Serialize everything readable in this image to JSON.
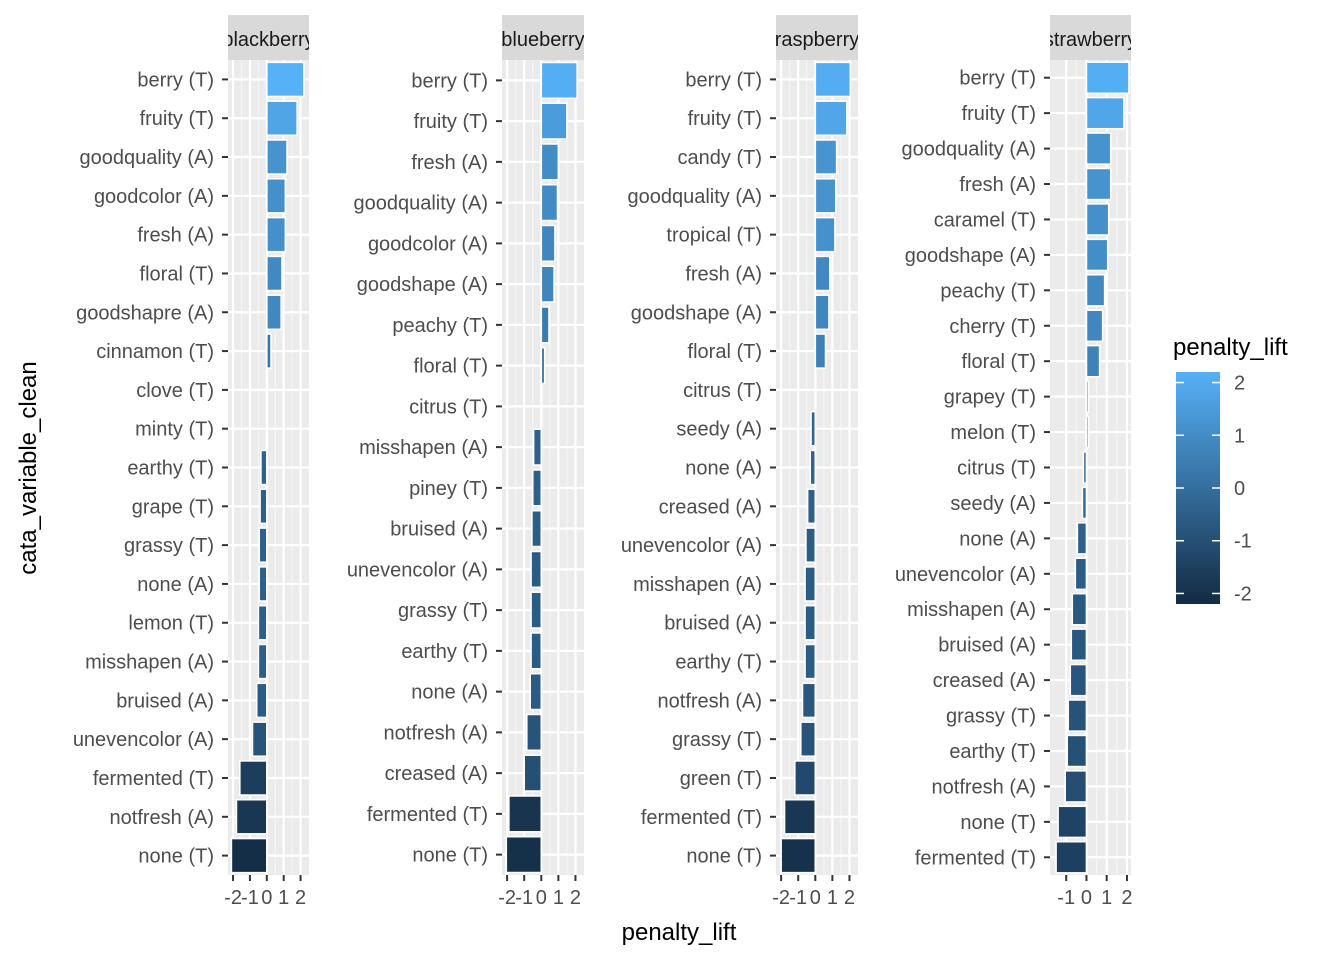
{
  "chart_data": {
    "type": "bar",
    "orientation": "horizontal",
    "xlabel": "penalty_lift",
    "ylabel": "cata_variable_clean",
    "legend": {
      "title": "penalty_lift",
      "position": "right",
      "ticks": [
        2,
        1,
        0,
        -1,
        -2
      ],
      "range": [
        -2.2,
        2.2
      ],
      "color_low": "#132B43",
      "color_high": "#56B1F7"
    },
    "grid": true,
    "panels": [
      {
        "strip": "blackberry",
        "xlim": [
          -2.3,
          2.5
        ],
        "xticks": [
          -2,
          -1,
          0,
          1,
          2
        ],
        "xtick_labels": [
          "-2",
          "-1",
          "0",
          "1",
          "2"
        ],
        "categories": [
          "berry (T)",
          "fruity (T)",
          "goodquality (A)",
          "goodcolor (A)",
          "fresh (A)",
          "floral (T)",
          "goodshapre (A)",
          "cinnamon (T)",
          "clove (T)",
          "minty (T)",
          "earthy (T)",
          "grape (T)",
          "grassy (T)",
          "none (A)",
          "lemon (T)",
          "misshapen (A)",
          "bruised (A)",
          "unevencolor (A)",
          "fermented (T)",
          "notfresh (A)",
          "none (T)"
        ],
        "values": [
          2.2,
          1.8,
          1.2,
          1.1,
          1.1,
          0.9,
          0.85,
          0.25,
          0.0,
          0.0,
          -0.35,
          -0.4,
          -0.45,
          -0.45,
          -0.5,
          -0.5,
          -0.6,
          -0.85,
          -1.6,
          -1.8,
          -2.1
        ]
      },
      {
        "strip": "blueberry",
        "xlim": [
          -2.3,
          2.5
        ],
        "xticks": [
          -2,
          -1,
          0,
          1,
          2
        ],
        "xtick_labels": [
          "-2",
          "-1",
          "0",
          "1",
          "2"
        ],
        "categories": [
          "berry (T)",
          "fruity (T)",
          "fresh (A)",
          "goodquality (A)",
          "goodcolor (A)",
          "goodshape (A)",
          "peachy (T)",
          "floral (T)",
          "citrus (T)",
          "misshapen (A)",
          "piney (T)",
          "bruised (A)",
          "unevencolor (A)",
          "grassy (T)",
          "earthy (T)",
          "none (A)",
          "notfresh (A)",
          "creased (A)",
          "fermented (T)",
          "none (T)"
        ],
        "values": [
          2.1,
          1.5,
          1.0,
          0.95,
          0.8,
          0.75,
          0.45,
          0.2,
          0.0,
          -0.45,
          -0.5,
          -0.55,
          -0.6,
          -0.6,
          -0.6,
          -0.65,
          -0.85,
          -1.0,
          -1.9,
          -2.05
        ]
      },
      {
        "strip": "raspberry",
        "xlim": [
          -2.3,
          2.5
        ],
        "xticks": [
          -2,
          -1,
          0,
          1,
          2
        ],
        "xtick_labels": [
          "-2",
          "-1",
          "0",
          "1",
          "2"
        ],
        "categories": [
          "berry (T)",
          "fruity (T)",
          "candy (T)",
          "goodquality (A)",
          "tropical (T)",
          "fresh (A)",
          "goodshape (A)",
          "floral (T)",
          "citrus (T)",
          "seedy (A)",
          "none (A)",
          "creased (A)",
          "unevencolor (A)",
          "misshapen (A)",
          "bruised (A)",
          "earthy (T)",
          "notfresh (A)",
          "grassy (T)",
          "green (T)",
          "fermented (T)",
          "none (T)"
        ],
        "values": [
          2.05,
          1.85,
          1.25,
          1.2,
          1.15,
          0.85,
          0.8,
          0.6,
          0.0,
          -0.25,
          -0.3,
          -0.45,
          -0.55,
          -0.6,
          -0.6,
          -0.6,
          -0.75,
          -0.85,
          -1.2,
          -1.8,
          -2.0
        ]
      },
      {
        "strip": "strawberry",
        "xlim": [
          -1.8,
          2.2
        ],
        "xticks": [
          -1,
          0,
          1,
          2
        ],
        "xtick_labels": [
          "-1",
          "0",
          "1",
          "2"
        ],
        "categories": [
          "berry (T)",
          "fruity (T)",
          "goodquality (A)",
          "fresh (A)",
          "caramel (T)",
          "goodshape (A)",
          "peachy (T)",
          "cherry (T)",
          "floral (T)",
          "grapey (T)",
          "melon (T)",
          "citrus (T)",
          "seedy (A)",
          "none (A)",
          "unevencolor (A)",
          "misshapen (A)",
          "bruised (A)",
          "creased (A)",
          "grassy (T)",
          "earthy (T)",
          "notfresh (A)",
          "none (T)",
          "fermented (T)"
        ],
        "values": [
          2.1,
          1.85,
          1.2,
          1.2,
          1.1,
          1.05,
          0.9,
          0.8,
          0.65,
          0.1,
          0.1,
          -0.15,
          -0.2,
          -0.45,
          -0.55,
          -0.7,
          -0.75,
          -0.8,
          -0.9,
          -0.95,
          -1.05,
          -1.4,
          -1.5
        ]
      }
    ]
  }
}
